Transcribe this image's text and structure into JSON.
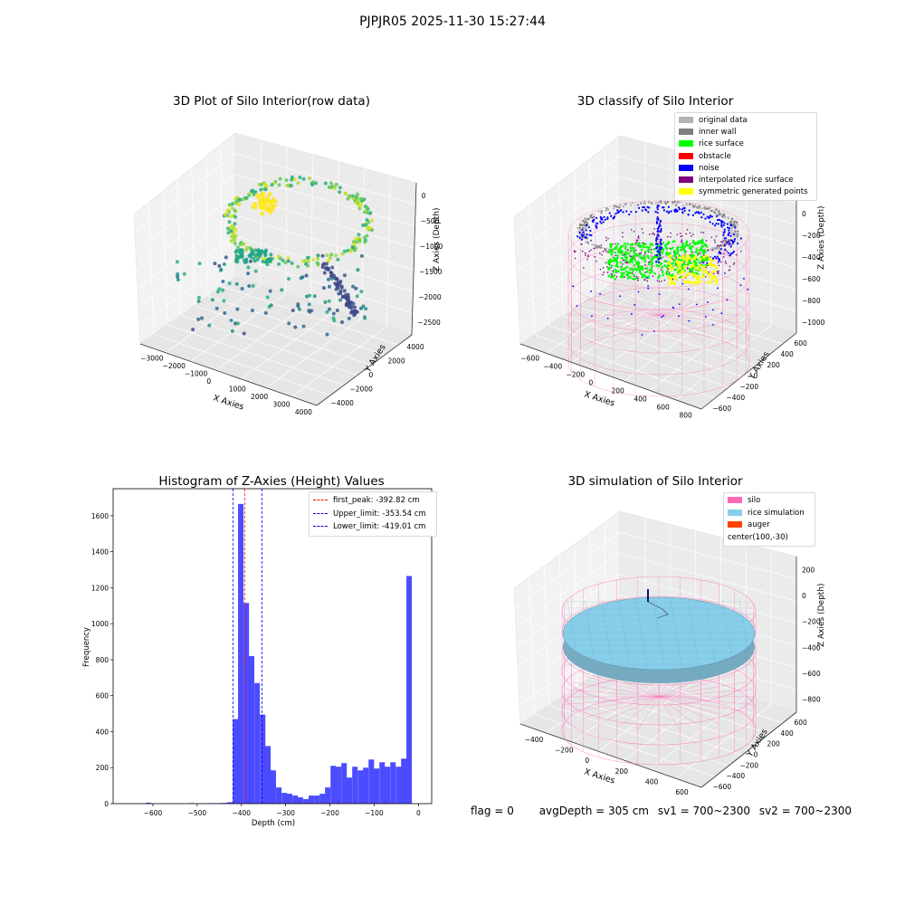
{
  "suptitle": "PJPJR05 2025-11-30 15:27:44",
  "colors": {
    "original": "#b3b3b3",
    "inner_wall": "#808080",
    "rice_surface": "#00ff00",
    "obstacle": "#ff0000",
    "noise": "#0000ff",
    "interp": "#800080",
    "symmetric": "#ffff00",
    "silo": "#ff69b4",
    "rice_sim": "#87ceeb",
    "auger": "#ff4500",
    "hist_bar": "#0000ff",
    "peak_line": "#ff0000",
    "limit_line": "#0000ff"
  },
  "panels": {
    "raw": {
      "title": "3D Plot of Silo Interior(row data)",
      "xlabel": "X Axies",
      "ylabel": "Y Axies",
      "zlabel": "Z Axies (Depth)",
      "xticks": [
        "−3000",
        "−2000",
        "−1000",
        "0",
        "1000",
        "2000",
        "3000",
        "4000"
      ],
      "yticks": [
        "−4000",
        "−2000",
        "0",
        "2000",
        "4000"
      ],
      "zticks": [
        "0",
        "−500",
        "−1000",
        "−1500",
        "−2000",
        "−2500"
      ]
    },
    "classify": {
      "title": "3D classify of Silo Interior",
      "xlabel": "X Axies",
      "ylabel": "Y Axies",
      "zlabel": "Z Axies (Depth)",
      "xticks": [
        "−600",
        "−400",
        "−200",
        "0",
        "200",
        "400",
        "600",
        "800"
      ],
      "yticks": [
        "−600",
        "−400",
        "−200",
        "0",
        "200",
        "400",
        "600"
      ],
      "zticks": [
        "200",
        "0",
        "−200",
        "−400",
        "−600",
        "−800",
        "−1000"
      ],
      "legend": [
        {
          "label": "original data",
          "color": "#b3b3b3"
        },
        {
          "label": "inner wall",
          "color": "#808080"
        },
        {
          "label": "rice surface",
          "color": "#00ff00"
        },
        {
          "label": "obstacle",
          "color": "#ff0000"
        },
        {
          "label": "noise",
          "color": "#0000ff"
        },
        {
          "label": "interpolated rice surface",
          "color": "#800080"
        },
        {
          "label": "symmetric generated points",
          "color": "#ffff00"
        }
      ]
    },
    "simulation": {
      "title": "3D simulation of Silo Interior",
      "xlabel": "X Axies",
      "ylabel": "Y Axies",
      "zlabel": "Z Axies (Depth)",
      "xticks": [
        "−400",
        "−200",
        "0",
        "200",
        "400",
        "600"
      ],
      "yticks": [
        "−600",
        "−400",
        "−200",
        "0",
        "200",
        "400",
        "600"
      ],
      "zticks": [
        "200",
        "0",
        "−200",
        "−400",
        "−600",
        "−800"
      ],
      "legend": [
        {
          "label": "silo",
          "color": "#ff69b4"
        },
        {
          "label": "rice simulation",
          "color": "#87ceeb"
        },
        {
          "label": "auger",
          "color": "#ff4500"
        },
        {
          "label": "center(100,-30)",
          "color": ""
        }
      ]
    }
  },
  "footer": {
    "flag": "flag = 0",
    "avg": "avgDepth = 305 cm",
    "sv1": "sv1 = 700~2300",
    "sv2": "sv2 = 700~2300"
  },
  "chart_data": {
    "type": "bar",
    "title": "Histogram of Z-Axies (Height) Values",
    "xlabel": "Depth (cm)",
    "ylabel": "Frequency",
    "xlim": [
      -690,
      30
    ],
    "ylim": [
      0,
      1750
    ],
    "xticks": [
      -600,
      -500,
      -400,
      -300,
      -200,
      -100,
      0
    ],
    "yticks": [
      0,
      200,
      400,
      600,
      800,
      1000,
      1200,
      1400,
      1600
    ],
    "bin_width": 12.3,
    "bins": [
      [
        -610,
        5
      ],
      [
        -512,
        3
      ],
      [
        -475,
        2
      ],
      [
        -463,
        3
      ],
      [
        -450,
        3
      ],
      [
        -438,
        4
      ],
      [
        -426,
        8
      ],
      [
        -413.5,
        470
      ],
      [
        -401.5,
        1665
      ],
      [
        -389,
        1115
      ],
      [
        -377,
        820
      ],
      [
        -364.5,
        670
      ],
      [
        -352,
        495
      ],
      [
        -340,
        320
      ],
      [
        -328,
        185
      ],
      [
        -315.5,
        90
      ],
      [
        -303,
        60
      ],
      [
        -291,
        55
      ],
      [
        -278.5,
        45
      ],
      [
        -266.5,
        35
      ],
      [
        -254,
        25
      ],
      [
        -242,
        45
      ],
      [
        -229.5,
        45
      ],
      [
        -217,
        55
      ],
      [
        -205,
        90
      ],
      [
        -192.5,
        210
      ],
      [
        -180.5,
        205
      ],
      [
        -168,
        225
      ],
      [
        -156,
        145
      ],
      [
        -143.5,
        205
      ],
      [
        -131,
        185
      ],
      [
        -119,
        200
      ],
      [
        -106.5,
        245
      ],
      [
        -94.5,
        195
      ],
      [
        -82,
        230
      ],
      [
        -70,
        205
      ],
      [
        -57.5,
        230
      ],
      [
        -45,
        205
      ],
      [
        -33,
        250
      ],
      [
        -21,
        1265
      ]
    ],
    "vlines": [
      {
        "label": "first_peak: -392.82 cm",
        "x": -392.82,
        "color": "#ff0000"
      },
      {
        "label": "Upper_limit: -353.54 cm",
        "x": -353.54,
        "color": "#0000ff"
      },
      {
        "label": "Lower_limit: -419.01 cm",
        "x": -419.01,
        "color": "#0000ff"
      }
    ],
    "legend_position": "upper right",
    "grid": false
  }
}
